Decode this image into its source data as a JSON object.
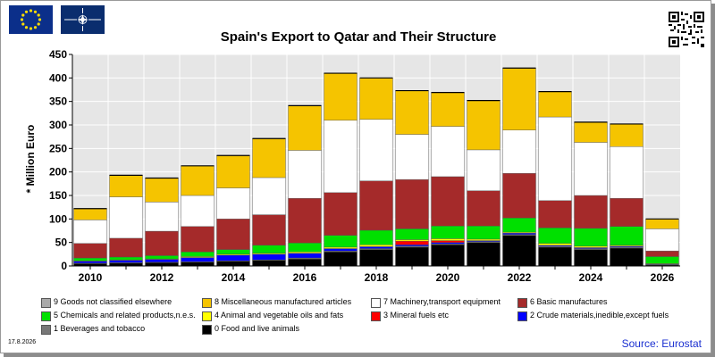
{
  "header": {
    "title": "Spain's Export to Qatar and Their Structure",
    "ylabel": "* Million Euro",
    "date": "17.8.2026",
    "source": "Source: Eurostat"
  },
  "colors": {
    "c0": "#000000",
    "c1": "#777777",
    "c2": "#0000ff",
    "c3": "#ff0000",
    "c4": "#ffff00",
    "c5": "#00e000",
    "c6": "#a52a2a",
    "c7": "#ffffff",
    "c8": "#f5c400",
    "c9": "#aaaaaa"
  },
  "chart_data": {
    "type": "bar",
    "stacked": true,
    "title": "Spain's Export to Qatar and Their Structure",
    "ylabel": "* Million Euro",
    "ylim": [
      0,
      450
    ],
    "yticks": [
      0,
      50,
      100,
      150,
      200,
      250,
      300,
      350,
      400,
      450
    ],
    "grid": true,
    "legend_position": "bottom",
    "categories": [
      "2010",
      "2011",
      "2012",
      "2013",
      "2014",
      "2015",
      "2016",
      "2017",
      "2018",
      "2019",
      "2020",
      "2021",
      "2022",
      "2023",
      "2024",
      "2025",
      "2026"
    ],
    "x_tick_labels": [
      "2010",
      "",
      "2012",
      "",
      "2014",
      "",
      "2016",
      "",
      "2018",
      "",
      "2020",
      "",
      "2022",
      "",
      "2024",
      "",
      "2026"
    ],
    "series": [
      {
        "name": "0 Food and live animals",
        "color": "#000000",
        "values": [
          5,
          6,
          7,
          8,
          10,
          12,
          15,
          30,
          35,
          40,
          45,
          50,
          65,
          40,
          35,
          38,
          2
        ]
      },
      {
        "name": "1 Beverages and tobacco",
        "color": "#777777",
        "values": [
          1,
          1,
          1,
          1,
          1,
          1,
          2,
          2,
          2,
          2,
          2,
          2,
          2,
          2,
          2,
          2,
          1
        ]
      },
      {
        "name": "2 Crude materials,inedible,except fuels",
        "color": "#0000ff",
        "values": [
          4,
          5,
          6,
          9,
          12,
          12,
          10,
          5,
          4,
          3,
          3,
          2,
          3,
          2,
          2,
          2,
          1
        ]
      },
      {
        "name": "3 Mineral fuels etc",
        "color": "#ff0000",
        "values": [
          0,
          0,
          0,
          0,
          0,
          0,
          0,
          0,
          0,
          8,
          4,
          0,
          0,
          0,
          0,
          0,
          0
        ]
      },
      {
        "name": "4 Animal and vegetable oils and fats",
        "color": "#ffff00",
        "values": [
          1,
          1,
          1,
          2,
          2,
          2,
          3,
          3,
          4,
          3,
          4,
          3,
          2,
          4,
          3,
          2,
          1
        ]
      },
      {
        "name": "5 Chemicals and related products,n.e.s.",
        "color": "#00e000",
        "values": [
          6,
          6,
          7,
          10,
          10,
          17,
          19,
          25,
          31,
          23,
          27,
          28,
          30,
          33,
          38,
          40,
          15
        ]
      },
      {
        "name": "6 Basic manufactures",
        "color": "#a52a2a",
        "values": [
          31,
          40,
          52,
          54,
          65,
          65,
          95,
          91,
          105,
          105,
          105,
          75,
          95,
          58,
          70,
          60,
          12
        ]
      },
      {
        "name": "7 Machinery,transport equipment",
        "color": "#ffffff",
        "values": [
          50,
          88,
          62,
          66,
          66,
          79,
          102,
          154,
          131,
          96,
          107,
          87,
          92,
          178,
          113,
          110,
          47
        ]
      },
      {
        "name": "8 Miscellaneous manufactured articles",
        "color": "#f5c400",
        "values": [
          24,
          46,
          51,
          63,
          69,
          83,
          95,
          100,
          88,
          93,
          72,
          105,
          132,
          54,
          43,
          48,
          21
        ]
      },
      {
        "name": "9 Goods not classified elsewhere",
        "color": "#aaaaaa",
        "values": [
          0,
          0,
          0,
          0,
          0,
          0,
          0,
          0,
          0,
          0,
          0,
          0,
          0,
          0,
          0,
          0,
          0
        ]
      }
    ]
  },
  "legend": {
    "items": [
      {
        "label": "9 Goods not classified elsewhere",
        "color": "#aaaaaa"
      },
      {
        "label": "8 Miscellaneous manufactured articles",
        "color": "#f5c400"
      },
      {
        "label": "7 Machinery,transport equipment",
        "color": "#ffffff"
      },
      {
        "label": "6 Basic manufactures",
        "color": "#a52a2a"
      },
      {
        "label": "5 Chemicals and related products,n.e.s.",
        "color": "#00e000"
      },
      {
        "label": "4 Animal and vegetable oils and fats",
        "color": "#ffff00"
      },
      {
        "label": "3 Mineral fuels etc",
        "color": "#ff0000"
      },
      {
        "label": "2 Crude materials,inedible,except fuels",
        "color": "#0000ff"
      },
      {
        "label": "1 Beverages and tobacco",
        "color": "#777777"
      },
      {
        "label": "0 Food and live animals",
        "color": "#000000"
      }
    ]
  },
  "icons": {
    "flag_left": "eu-flag-icon",
    "flag_right": "nato-flag-icon",
    "qr": "qr-code-icon"
  }
}
